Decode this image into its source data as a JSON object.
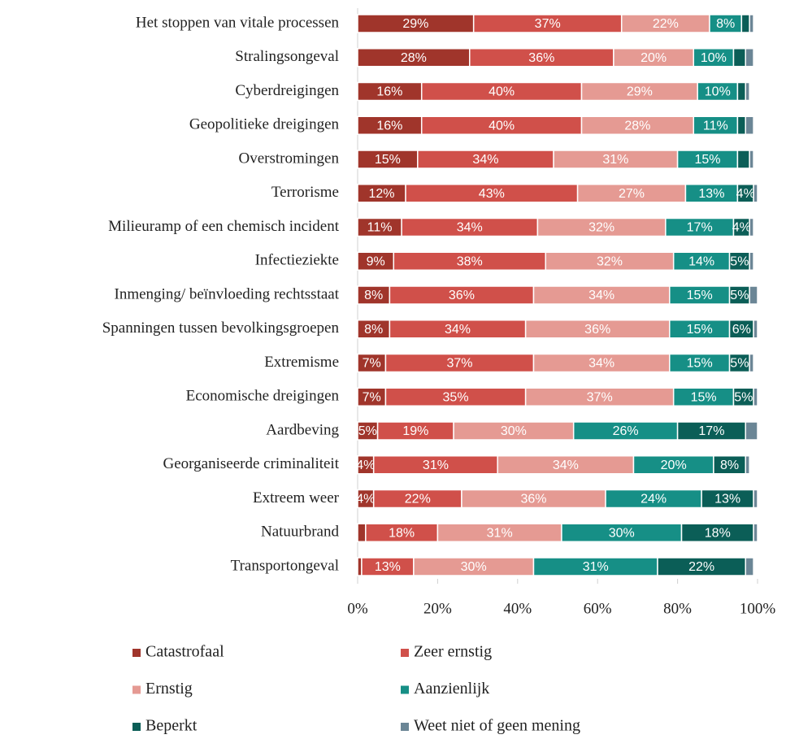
{
  "chart_data": {
    "type": "stacked_bar_horizontal",
    "categories": [
      "Het stoppen van vitale processen",
      "Stralingsongeval",
      "Cyberdreigingen",
      "Geopolitieke dreigingen",
      "Overstromingen",
      "Terrorisme",
      "Milieuramp of een chemisch incident",
      "Infectieziekte",
      "Inmenging/ beïnvloeding rechtsstaat",
      "Spanningen tussen bevolkingsgroepen",
      "Extremisme",
      "Economische dreigingen",
      "Aardbeving",
      "Georganiseerde criminaliteit",
      "Extreem weer",
      "Natuurbrand",
      "Transportongeval"
    ],
    "series": [
      {
        "name": "Catastrofaal",
        "color": "#a0352b",
        "values": [
          29,
          28,
          16,
          16,
          15,
          12,
          11,
          9,
          8,
          8,
          7,
          7,
          5,
          4,
          4,
          2,
          1
        ],
        "value_labels": [
          "29%",
          "28%",
          "16%",
          "16%",
          "15%",
          "12%",
          "11%",
          "9%",
          "8%",
          "8%",
          "7%",
          "7%",
          "5%",
          "4%",
          "4%",
          null,
          null
        ]
      },
      {
        "name": "Zeer ernstig",
        "color": "#d0504a",
        "values": [
          37,
          36,
          40,
          40,
          34,
          43,
          34,
          38,
          36,
          34,
          37,
          35,
          19,
          31,
          22,
          18,
          13
        ],
        "value_labels": [
          "37%",
          "36%",
          "40%",
          "40%",
          "34%",
          "43%",
          "34%",
          "38%",
          "36%",
          "34%",
          "37%",
          "35%",
          "19%",
          "31%",
          "22%",
          "18%",
          "13%"
        ]
      },
      {
        "name": "Ernstig",
        "color": "#e59a93",
        "values": [
          22,
          20,
          29,
          28,
          31,
          27,
          32,
          32,
          34,
          36,
          34,
          37,
          30,
          34,
          36,
          31,
          30
        ],
        "value_labels": [
          "22%",
          "20%",
          "29%",
          "28%",
          "31%",
          "27%",
          "32%",
          "32%",
          "34%",
          "36%",
          "34%",
          "37%",
          "30%",
          "34%",
          "36%",
          "31%",
          "30%"
        ]
      },
      {
        "name": "Aanzienlijk",
        "color": "#168f86",
        "values": [
          8,
          10,
          10,
          11,
          15,
          13,
          17,
          14,
          15,
          15,
          15,
          15,
          26,
          20,
          24,
          30,
          31
        ],
        "value_labels": [
          "8%",
          "10%",
          "10%",
          "11%",
          "15%",
          "13%",
          "17%",
          "14%",
          "15%",
          "15%",
          "15%",
          "15%",
          "26%",
          "20%",
          "24%",
          "30%",
          "31%"
        ]
      },
      {
        "name": "Beperkt",
        "color": "#0b5e57",
        "values": [
          2,
          3,
          2,
          2,
          3,
          4,
          4,
          5,
          5,
          6,
          5,
          5,
          17,
          8,
          13,
          18,
          22
        ],
        "value_labels": [
          null,
          null,
          null,
          null,
          null,
          "4%",
          "4%",
          "5%",
          "5%",
          "6%",
          "5%",
          "5%",
          "17%",
          "8%",
          "13%",
          "18%",
          "22%"
        ]
      },
      {
        "name": "Weet niet of geen mening",
        "color": "#6b8696",
        "values": [
          1,
          2,
          1,
          2,
          1,
          1,
          1,
          1,
          2,
          1,
          1,
          1,
          3,
          1,
          1,
          1,
          2
        ],
        "value_labels": [
          null,
          null,
          null,
          null,
          null,
          null,
          null,
          null,
          null,
          null,
          null,
          null,
          null,
          null,
          null,
          null,
          null
        ]
      }
    ],
    "xlim": [
      0,
      100
    ],
    "xticks": [
      {
        "value": 0,
        "label": "0%"
      },
      {
        "value": 20,
        "label": "20%"
      },
      {
        "value": 40,
        "label": "40%"
      },
      {
        "value": 60,
        "label": "60%"
      },
      {
        "value": 80,
        "label": "80%"
      },
      {
        "value": 100,
        "label": "100%"
      }
    ]
  }
}
